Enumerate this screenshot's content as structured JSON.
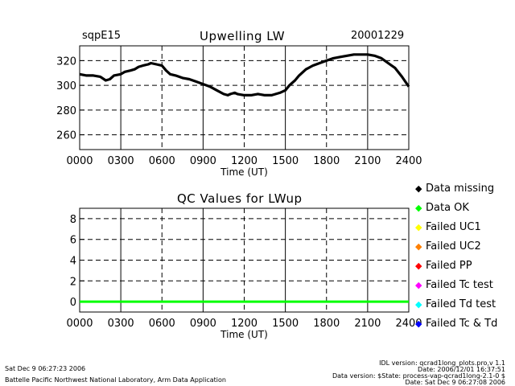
{
  "header": {
    "site": "sqpE15",
    "title": "Upwelling LW",
    "date": "20001229"
  },
  "qc_title": "QC Values for LWup",
  "legend": {
    "items": [
      {
        "label": "Data missing",
        "color": "#000000"
      },
      {
        "label": "Data OK",
        "color": "#00ff00"
      },
      {
        "label": "Failed UC1",
        "color": "#ffff00"
      },
      {
        "label": "Failed UC2",
        "color": "#ff8000"
      },
      {
        "label": "Failed PP",
        "color": "#ff0000"
      },
      {
        "label": "Failed Tc test",
        "color": "#ff00ff"
      },
      {
        "label": "Failed Td test",
        "color": "#00ffff"
      },
      {
        "label": "Failed Tc & Td",
        "color": "#0000ff"
      }
    ]
  },
  "footer": {
    "left_line1": "Sat Dec  9 06:27:23 2006",
    "left_line2": "Battelle Pacific Northwest National Laboratory, Arm Data Application",
    "right_line1": "IDL version: qcrad1long_plots.pro,v 1.1",
    "right_line2": "Date: 2006/12/01 16:37:51",
    "right_line3": "Data version: $State: process-vap-qcrad1long-2.1-0 $",
    "right_line4": "Date: Sat Dec  9 06:27:08 2006"
  },
  "chart_data": [
    {
      "type": "line",
      "title": "Upwelling LW",
      "xlabel": "Time (UT)",
      "ylabel": "",
      "xlim": [
        0,
        24
      ],
      "ylim": [
        248,
        332
      ],
      "x_ticks": [
        "0000",
        "0300",
        "0600",
        "0900",
        "1200",
        "1500",
        "1800",
        "2100",
        "2400"
      ],
      "y_ticks": [
        260,
        280,
        300,
        320
      ],
      "series": [
        {
          "name": "LWup",
          "color": "#000000",
          "x": [
            0,
            0.5,
            1,
            1.5,
            1.9,
            2.2,
            2.5,
            3.0,
            3.3,
            3.7,
            4.0,
            4.3,
            4.6,
            5.0,
            5.2,
            5.6,
            6.0,
            6.3,
            6.6,
            7.0,
            7.5,
            8.0,
            8.5,
            9.0,
            9.5,
            10.0,
            10.5,
            10.8,
            11.0,
            11.3,
            11.5,
            12.0,
            12.5,
            13.0,
            13.5,
            14.0,
            14.3,
            14.6,
            15.0,
            15.3,
            15.7,
            16.0,
            16.5,
            17.0,
            17.5,
            18.0,
            18.5,
            19.0,
            19.5,
            20.0,
            20.5,
            21.0,
            21.5,
            22.0,
            22.5,
            23.0,
            23.5,
            24.0
          ],
          "values": [
            309,
            308,
            308,
            307,
            304,
            305,
            308,
            309,
            311,
            312,
            313,
            315,
            316,
            317,
            318,
            317,
            316,
            312,
            309,
            308,
            306,
            305,
            303,
            301,
            299,
            296,
            293,
            292,
            293,
            294,
            293,
            292,
            292,
            293,
            292,
            292,
            293,
            294,
            296,
            300,
            304,
            308,
            313,
            316,
            318,
            320,
            322,
            323,
            324,
            325,
            325,
            325,
            324,
            322,
            318,
            314,
            307,
            299
          ]
        }
      ]
    },
    {
      "type": "line",
      "title": "QC Values for LWup",
      "xlabel": "Time (UT)",
      "ylabel": "",
      "xlim": [
        0,
        24
      ],
      "ylim": [
        -1,
        9
      ],
      "x_ticks": [
        "0000",
        "0300",
        "0600",
        "0900",
        "1200",
        "1500",
        "1800",
        "2100",
        "2400"
      ],
      "y_ticks": [
        0,
        2,
        4,
        6,
        8
      ],
      "series": [
        {
          "name": "QC value",
          "color": "#00ff00",
          "x": [
            0,
            24
          ],
          "values": [
            0,
            0
          ]
        }
      ]
    }
  ]
}
